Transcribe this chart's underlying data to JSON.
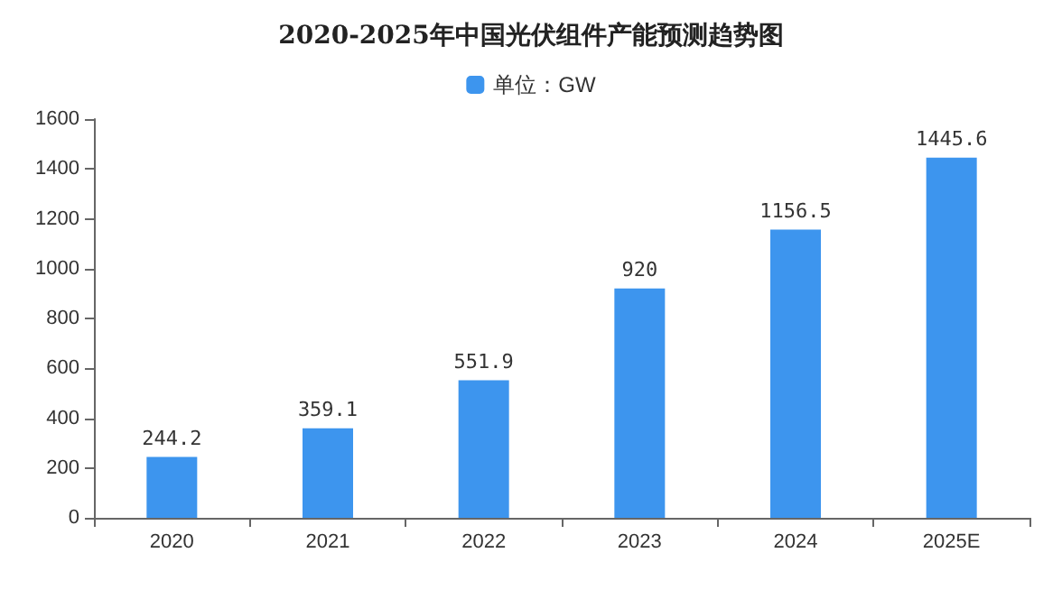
{
  "chart_data": {
    "type": "bar",
    "title": "2020-2025年中国光伏组件产能预测趋势图",
    "categories": [
      "2020",
      "2021",
      "2022",
      "2023",
      "2024",
      "2025E"
    ],
    "series": [
      {
        "name": "单位：GW",
        "color": "#3d95ee",
        "values": [
          244.2,
          359.1,
          551.9,
          920,
          1156.5,
          1445.6
        ]
      }
    ],
    "ylim": [
      0,
      1600
    ],
    "yticks": [
      0,
      200,
      400,
      600,
      800,
      1000,
      1200,
      1400,
      1600
    ],
    "grid": false,
    "legend": "top",
    "data_labels": true
  }
}
